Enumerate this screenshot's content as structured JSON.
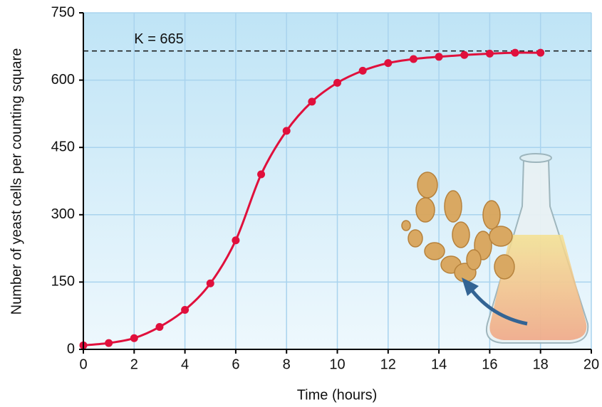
{
  "chart_data": {
    "type": "line",
    "x_label": "Time (hours)",
    "y_label": "Number of yeast cells per counting square",
    "x": [
      0,
      1,
      2,
      3,
      4,
      5,
      6,
      7,
      8,
      9,
      10,
      11,
      12,
      13,
      14,
      15,
      16,
      17,
      18
    ],
    "values": [
      9,
      14,
      25,
      50,
      88,
      147,
      243,
      390,
      487,
      552,
      594,
      621,
      638,
      647,
      652,
      656,
      659,
      661,
      661
    ],
    "color": "#e0103c",
    "xlim": [
      0,
      20
    ],
    "xticks": [
      0,
      2,
      4,
      6,
      8,
      10,
      12,
      14,
      16,
      18,
      20
    ],
    "ylim": [
      0,
      750
    ],
    "yticks": [
      0,
      150,
      300,
      450,
      600,
      750
    ],
    "grid": true,
    "annotation": {
      "label": "K = 665",
      "value": 665
    }
  }
}
